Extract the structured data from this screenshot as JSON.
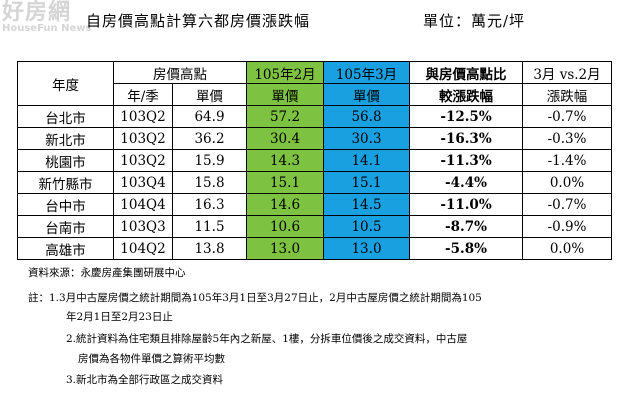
{
  "watermark": {
    "line1": "好房網",
    "line2": "HouseFun News"
  },
  "title": "自房價高點計算六都房價漲跌幅",
  "unit": "單位：萬元/坪",
  "table": {
    "h_year": "年度",
    "h_peak": "房價高點",
    "h_feb": "105年2月",
    "h_mar": "105年3月",
    "h_compare_1": "與房價高點比",
    "h_compare_2": "較漲跌幅",
    "h_mom_1": "3月 vs.2月",
    "h_mom_2": "漲跌幅",
    "h_yq": "年/季",
    "h_price": "單價",
    "h_feb_price": "單價",
    "h_mar_price": "單價",
    "rows": [
      {
        "city": "台北市",
        "yq": "103Q2",
        "peak": "64.9",
        "feb": "57.2",
        "mar": "56.8",
        "chg": "-12.5%",
        "mom": "-0.7%"
      },
      {
        "city": "新北市",
        "yq": "103Q2",
        "peak": "36.2",
        "feb": "30.4",
        "mar": "30.3",
        "chg": "-16.3%",
        "mom": "-0.3%"
      },
      {
        "city": "桃園市",
        "yq": "103Q2",
        "peak": "15.9",
        "feb": "14.3",
        "mar": "14.1",
        "chg": "-11.3%",
        "mom": "-1.4%"
      },
      {
        "city": "新竹縣市",
        "yq": "103Q4",
        "peak": "15.8",
        "feb": "15.1",
        "mar": "15.1",
        "chg": "-4.4%",
        "mom": "0.0%"
      },
      {
        "city": "台中市",
        "yq": "104Q4",
        "peak": "16.3",
        "feb": "14.6",
        "mar": "14.5",
        "chg": "-11.0%",
        "mom": "-0.7%"
      },
      {
        "city": "台南市",
        "yq": "103Q3",
        "peak": "11.5",
        "feb": "10.6",
        "mar": "10.5",
        "chg": "-8.7%",
        "mom": "-0.9%"
      },
      {
        "city": "高雄市",
        "yq": "104Q2",
        "peak": "13.8",
        "feb": "13.0",
        "mar": "13.0",
        "chg": "-5.8%",
        "mom": "0.0%"
      }
    ]
  },
  "notes": {
    "source": "資料來源：永慶房產集團研展中心",
    "n1a": "註：1.3月中古屋房價之統計期間為105年3月1日至3月27日止，2月中古屋房價之統計期間為105",
    "n1b": "年2月1日至2月23日止",
    "n2a": "2.統計資料為住宅類且排除屋齡5年內之新屋、1樓，分拆車位價後之成交資料，中古屋",
    "n2b": "房價為各物件單價之算術平均數",
    "n3": "3.新北市為全部行政區之成交資料"
  }
}
